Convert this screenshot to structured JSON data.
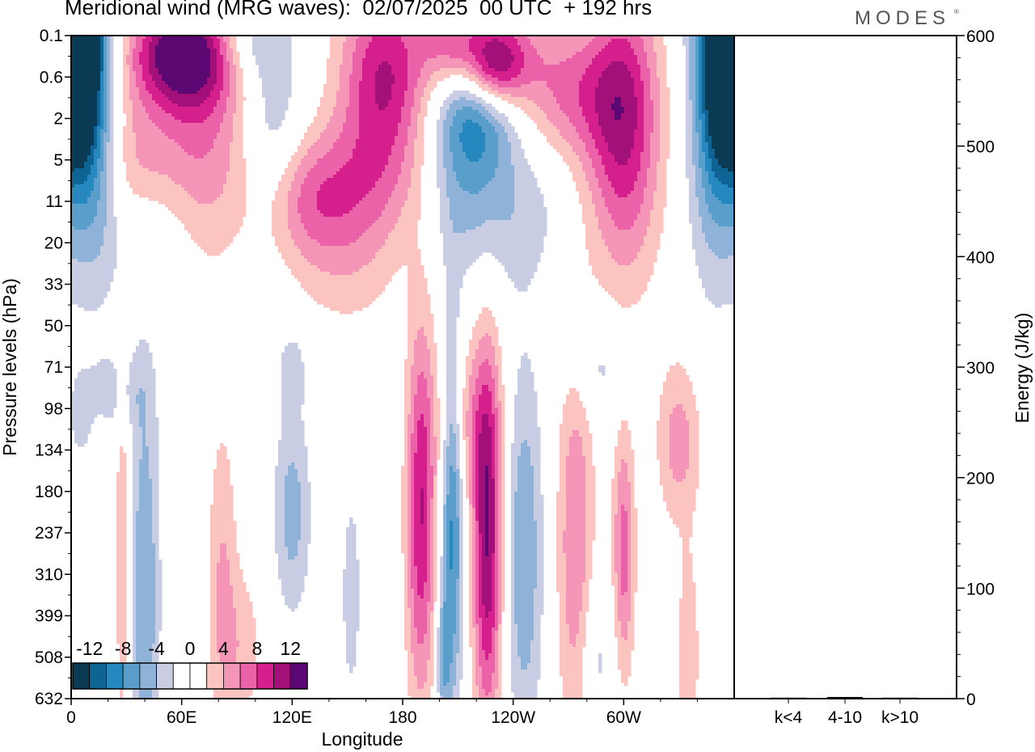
{
  "title": "Meridional wind (MRG waves):  02/07/2025  00 UTC  + 192 hrs",
  "brand": "MODES",
  "brand_mark": "®",
  "chart_data": [
    {
      "type": "heatmap",
      "title": "Meridional wind (MRG waves):  02/07/2025  00 UTC  + 192 hrs",
      "xlabel": "Longitude",
      "ylabel": "Pressure levels (hPa)",
      "x_ticks": [
        "0",
        "60E",
        "120E",
        "180",
        "120W",
        "60W"
      ],
      "y_ticks": [
        "0.1",
        "0.6",
        "2",
        "5",
        "11",
        "20",
        "33",
        "50",
        "71",
        "98",
        "134",
        "180",
        "237",
        "310",
        "399",
        "508",
        "632"
      ],
      "colorbar": {
        "labels": [
          "-12",
          "-8",
          "-4",
          "0",
          "4",
          "8",
          "12"
        ],
        "colors": [
          "#0b3a55",
          "#0e6494",
          "#2787bf",
          "#5a9fcb",
          "#8fb3d8",
          "#c9cde3",
          "#ffffff",
          "#ffffff",
          "#fbc4c1",
          "#f596b8",
          "#ec62a8",
          "#d41f8d",
          "#a3107a",
          "#5b0872"
        ]
      },
      "blobs": [
        {
          "lon": 6,
          "lev": 0.0,
          "w": 10,
          "h": 3.0,
          "v": -14
        },
        {
          "lon": 12,
          "lev": 1.0,
          "w": 14,
          "h": 4.5,
          "v": -8
        },
        {
          "lon": 354,
          "lev": 0.0,
          "w": 10,
          "h": 3.0,
          "v": -14
        },
        {
          "lon": 348,
          "lev": 1.0,
          "w": 14,
          "h": 4.5,
          "v": -8
        },
        {
          "lon": 60,
          "lev": 0.4,
          "w": 28,
          "h": 1.3,
          "v": 13
        },
        {
          "lon": 70,
          "lev": 2.4,
          "w": 26,
          "h": 3.0,
          "v": 6
        },
        {
          "lon": 35,
          "lev": 3.2,
          "w": 18,
          "h": 2.0,
          "v": 4
        },
        {
          "lon": 95,
          "lev": 0.1,
          "w": 20,
          "h": 1.0,
          "v": -4
        },
        {
          "lon": 110,
          "lev": 2.2,
          "w": 16,
          "h": 2.5,
          "v": -4
        },
        {
          "lon": 125,
          "lev": 4.0,
          "w": 24,
          "h": 1.5,
          "v": 4
        },
        {
          "lon": 150,
          "lev": 4.8,
          "w": 30,
          "h": 2.2,
          "v": 4
        },
        {
          "lon": 170,
          "lev": 1.0,
          "w": 24,
          "h": 2.3,
          "v": 10
        },
        {
          "lon": 155,
          "lev": 3.5,
          "w": 40,
          "h": 1.5,
          "v": 3
        },
        {
          "lon": 220,
          "lev": 1.8,
          "w": 22,
          "h": 1.5,
          "v": -8
        },
        {
          "lon": 225,
          "lev": 0.3,
          "w": 30,
          "h": 1.2,
          "v": 6
        },
        {
          "lon": 230,
          "lev": 0.8,
          "w": 16,
          "h": 1.0,
          "v": 9
        },
        {
          "lon": 213,
          "lev": 3.6,
          "w": 22,
          "h": 2.0,
          "v": -4
        },
        {
          "lon": 270,
          "lev": 1.4,
          "w": 30,
          "h": 1.6,
          "v": 6
        },
        {
          "lon": 300,
          "lev": 2.2,
          "w": 20,
          "h": 3.5,
          "v": 10
        },
        {
          "lon": 242,
          "lev": 4.2,
          "w": 28,
          "h": 2.0,
          "v": -3
        },
        {
          "lon": 40,
          "lev": 4.8,
          "w": 25,
          "h": 1.5,
          "v": -3
        },
        {
          "lon": 205,
          "lev": 0.0,
          "w": 14,
          "h": 1.0,
          "v": 4
        },
        {
          "lon": 190,
          "lev": 11.5,
          "w": 8,
          "h": 4.5,
          "v": 10
        },
        {
          "lon": 207,
          "lev": 11.5,
          "w": 6,
          "h": 4.5,
          "v": -9
        },
        {
          "lon": 226,
          "lev": 12.2,
          "w": 8,
          "h": 4.5,
          "v": 12
        },
        {
          "lon": 246,
          "lev": 12.5,
          "w": 10,
          "h": 4.5,
          "v": -6
        },
        {
          "lon": 274,
          "lev": 12.3,
          "w": 10,
          "h": 5.0,
          "v": 6
        },
        {
          "lon": 300,
          "lev": 12.5,
          "w": 6,
          "h": 3.0,
          "v": 7
        },
        {
          "lon": 330,
          "lev": 9.8,
          "w": 12,
          "h": 2.0,
          "v": 5
        },
        {
          "lon": 40,
          "lev": 13.5,
          "w": 8,
          "h": 5.5,
          "v": -6
        },
        {
          "lon": 28,
          "lev": 12.5,
          "w": 4,
          "h": 5.0,
          "v": 4
        },
        {
          "lon": 82,
          "lev": 13.2,
          "w": 8,
          "h": 4.0,
          "v": 4
        },
        {
          "lon": 120,
          "lev": 11.5,
          "w": 10,
          "h": 2.5,
          "v": -5
        },
        {
          "lon": 215,
          "lev": 9.3,
          "w": 16,
          "h": 2.0,
          "v": 4
        },
        {
          "lon": 120,
          "lev": 8.0,
          "w": 8,
          "h": 1.0,
          "v": -3
        },
        {
          "lon": 285,
          "lev": 8.0,
          "w": 16,
          "h": 1.2,
          "v": -3
        },
        {
          "lon": 25,
          "lev": 8.6,
          "w": 16,
          "h": 1.0,
          "v": -3
        },
        {
          "lon": 202,
          "lev": 15.0,
          "w": 4,
          "h": 1.5,
          "v": -5
        },
        {
          "lon": 335,
          "lev": 15.0,
          "w": 6,
          "h": 2.5,
          "v": 4
        },
        {
          "lon": 152,
          "lev": 13.5,
          "w": 6,
          "h": 3.0,
          "v": -3
        },
        {
          "lon": 285,
          "lev": 15.0,
          "w": 10,
          "h": 2.0,
          "v": -3
        },
        {
          "lon": 5,
          "lev": 9.2,
          "w": 6,
          "h": 1.0,
          "v": -3
        },
        {
          "lon": 93,
          "lev": 14.8,
          "w": 12,
          "h": 2.0,
          "v": 3
        }
      ]
    },
    {
      "type": "bar",
      "ylabel": "Energy (J/kg)",
      "categories": [
        "k<4",
        "4-10",
        "k>10"
      ],
      "values": [
        0.5,
        1.5,
        0.5
      ],
      "ylim": [
        0,
        600
      ],
      "y_ticks": [
        "0",
        "100",
        "200",
        "300",
        "400",
        "500",
        "600"
      ]
    }
  ]
}
